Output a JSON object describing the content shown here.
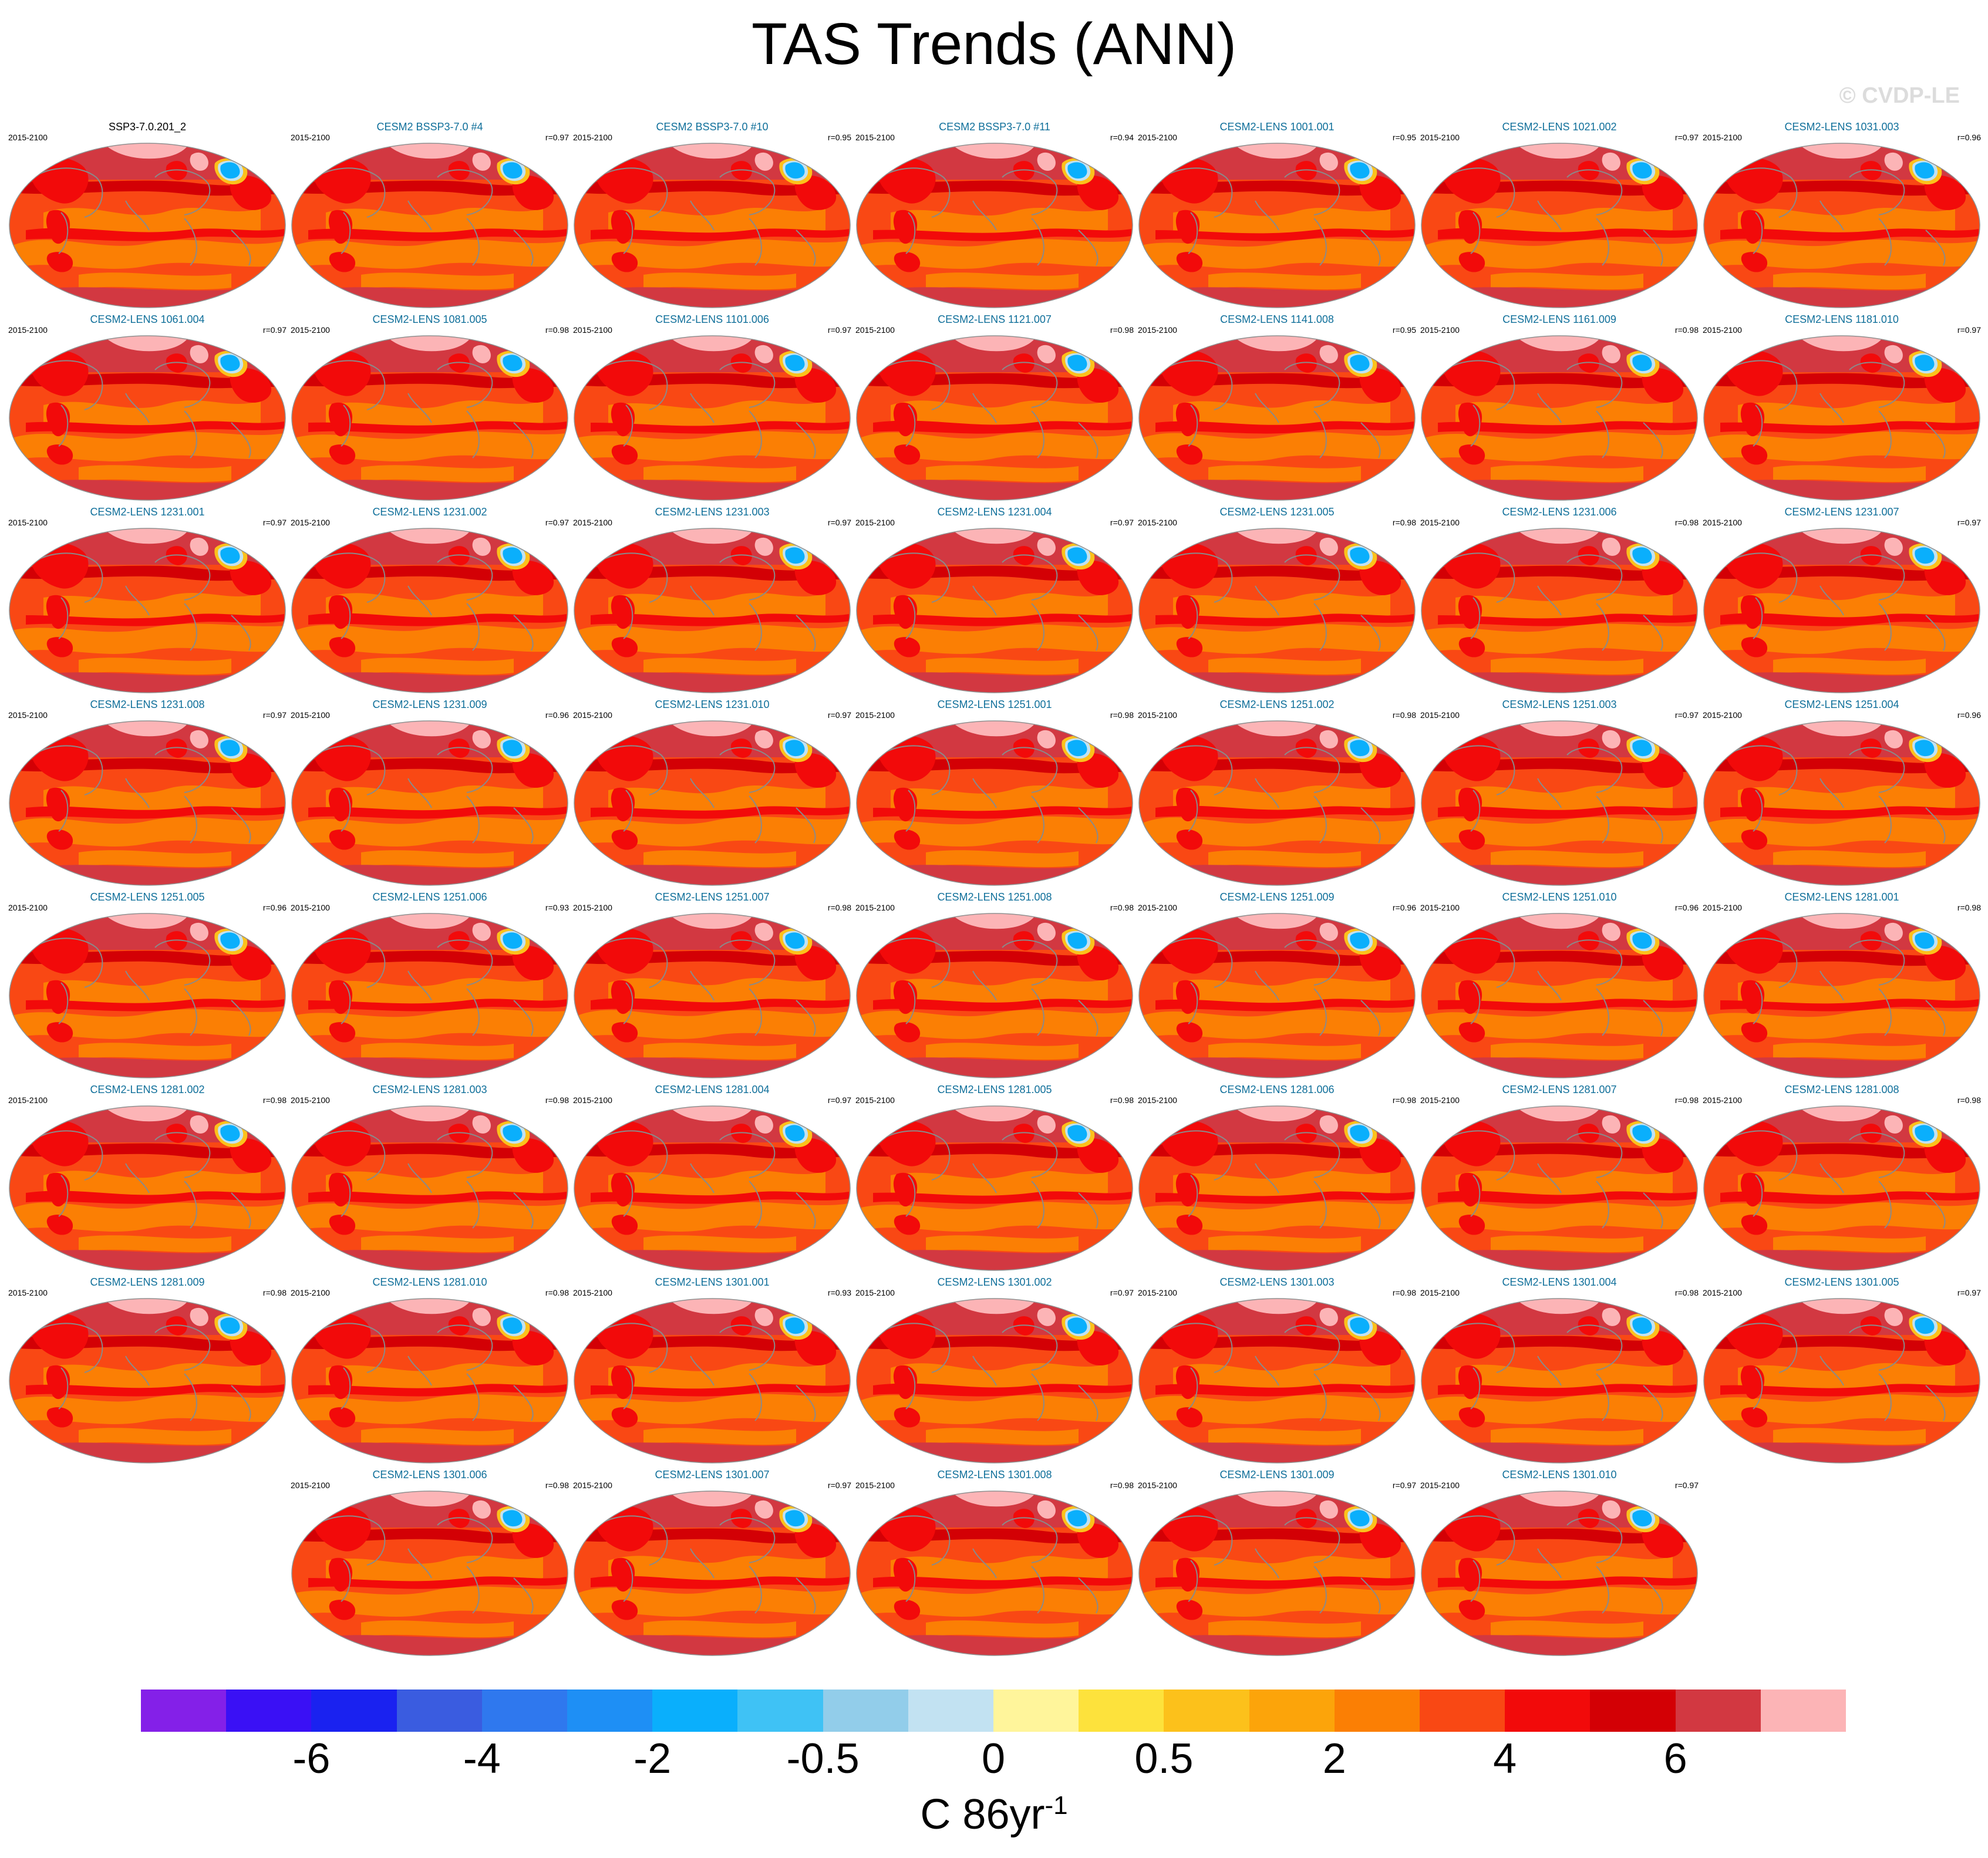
{
  "title": "TAS Trends (ANN)",
  "watermark": "© CVDP-LE",
  "units": {
    "base": "C 86yr",
    "exponent": "-1"
  },
  "chart_data": {
    "type": "heatmap",
    "description_scope": "small multiples of global maps",
    "period": "2015-2100",
    "colorbar": {
      "colors": [
        "#8420e8",
        "#3a10f5",
        "#1a22f0",
        "#3a5ce0",
        "#2f78ee",
        "#1e8ff5",
        "#0aaffc",
        "#3fc2f5",
        "#92cdea",
        "#c2e2f2",
        "#fff59b",
        "#fde23c",
        "#fcc11b",
        "#fca40a",
        "#fb7f04",
        "#f94814",
        "#f20a0a",
        "#d30005",
        "#d23841",
        "#fcb4b6"
      ],
      "tick_labels": [
        {
          "label": "-6",
          "boundary": 2
        },
        {
          "label": "-4",
          "boundary": 4
        },
        {
          "label": "-2",
          "boundary": 6
        },
        {
          "label": "-0.5",
          "boundary": 8
        },
        {
          "label": "0",
          "boundary": 10
        },
        {
          "label": "0.5",
          "boundary": 12
        },
        {
          "label": "2",
          "boundary": 14
        },
        {
          "label": "4",
          "boundary": 16
        },
        {
          "label": "6",
          "boundary": 18
        }
      ]
    },
    "panels": [
      {
        "title": "SSP3-7.0.201_2",
        "r": "",
        "observational": true
      },
      {
        "title": "CESM2 BSSP3-7.0 #4",
        "r": "r=0.97"
      },
      {
        "title": "CESM2 BSSP3-7.0 #10",
        "r": "r=0.95"
      },
      {
        "title": "CESM2 BSSP3-7.0 #11",
        "r": "r=0.94"
      },
      {
        "title": "CESM2-LENS 1001.001",
        "r": "r=0.95"
      },
      {
        "title": "CESM2-LENS 1021.002",
        "r": "r=0.97"
      },
      {
        "title": "CESM2-LENS 1031.003",
        "r": "r=0.96"
      },
      {
        "title": "CESM2-LENS 1061.004",
        "r": "r=0.97"
      },
      {
        "title": "CESM2-LENS 1081.005",
        "r": "r=0.98"
      },
      {
        "title": "CESM2-LENS 1101.006",
        "r": "r=0.97"
      },
      {
        "title": "CESM2-LENS 1121.007",
        "r": "r=0.98"
      },
      {
        "title": "CESM2-LENS 1141.008",
        "r": "r=0.95"
      },
      {
        "title": "CESM2-LENS 1161.009",
        "r": "r=0.98"
      },
      {
        "title": "CESM2-LENS 1181.010",
        "r": "r=0.97"
      },
      {
        "title": "CESM2-LENS 1231.001",
        "r": "r=0.97"
      },
      {
        "title": "CESM2-LENS 1231.002",
        "r": "r=0.97"
      },
      {
        "title": "CESM2-LENS 1231.003",
        "r": "r=0.97"
      },
      {
        "title": "CESM2-LENS 1231.004",
        "r": "r=0.97"
      },
      {
        "title": "CESM2-LENS 1231.005",
        "r": "r=0.98"
      },
      {
        "title": "CESM2-LENS 1231.006",
        "r": "r=0.98"
      },
      {
        "title": "CESM2-LENS 1231.007",
        "r": "r=0.97"
      },
      {
        "title": "CESM2-LENS 1231.008",
        "r": "r=0.97"
      },
      {
        "title": "CESM2-LENS 1231.009",
        "r": "r=0.96"
      },
      {
        "title": "CESM2-LENS 1231.010",
        "r": "r=0.97"
      },
      {
        "title": "CESM2-LENS 1251.001",
        "r": "r=0.98"
      },
      {
        "title": "CESM2-LENS 1251.002",
        "r": "r=0.98"
      },
      {
        "title": "CESM2-LENS 1251.003",
        "r": "r=0.97"
      },
      {
        "title": "CESM2-LENS 1251.004",
        "r": "r=0.96"
      },
      {
        "title": "CESM2-LENS 1251.005",
        "r": "r=0.96"
      },
      {
        "title": "CESM2-LENS 1251.006",
        "r": "r=0.93"
      },
      {
        "title": "CESM2-LENS 1251.007",
        "r": "r=0.98"
      },
      {
        "title": "CESM2-LENS 1251.008",
        "r": "r=0.98"
      },
      {
        "title": "CESM2-LENS 1251.009",
        "r": "r=0.96"
      },
      {
        "title": "CESM2-LENS 1251.010",
        "r": "r=0.96"
      },
      {
        "title": "CESM2-LENS 1281.001",
        "r": "r=0.98"
      },
      {
        "title": "CESM2-LENS 1281.002",
        "r": "r=0.98"
      },
      {
        "title": "CESM2-LENS 1281.003",
        "r": "r=0.98"
      },
      {
        "title": "CESM2-LENS 1281.004",
        "r": "r=0.97"
      },
      {
        "title": "CESM2-LENS 1281.005",
        "r": "r=0.98"
      },
      {
        "title": "CESM2-LENS 1281.006",
        "r": "r=0.98"
      },
      {
        "title": "CESM2-LENS 1281.007",
        "r": "r=0.98"
      },
      {
        "title": "CESM2-LENS 1281.008",
        "r": "r=0.98"
      },
      {
        "title": "CESM2-LENS 1281.009",
        "r": "r=0.98"
      },
      {
        "title": "CESM2-LENS 1281.010",
        "r": "r=0.98"
      },
      {
        "title": "CESM2-LENS 1301.001",
        "r": "r=0.93"
      },
      {
        "title": "CESM2-LENS 1301.002",
        "r": "r=0.97"
      },
      {
        "title": "CESM2-LENS 1301.003",
        "r": "r=0.98"
      },
      {
        "title": "CESM2-LENS 1301.004",
        "r": "r=0.98"
      },
      {
        "title": "CESM2-LENS 1301.005",
        "r": "r=0.97"
      },
      {
        "title": "CESM2-LENS 1301.006",
        "r": "r=0.98"
      },
      {
        "title": "CESM2-LENS 1301.007",
        "r": "r=0.97"
      },
      {
        "title": "CESM2-LENS 1301.008",
        "r": "r=0.98"
      },
      {
        "title": "CESM2-LENS 1301.009",
        "r": "r=0.97"
      },
      {
        "title": "CESM2-LENS 1301.010",
        "r": "r=0.97"
      }
    ]
  }
}
